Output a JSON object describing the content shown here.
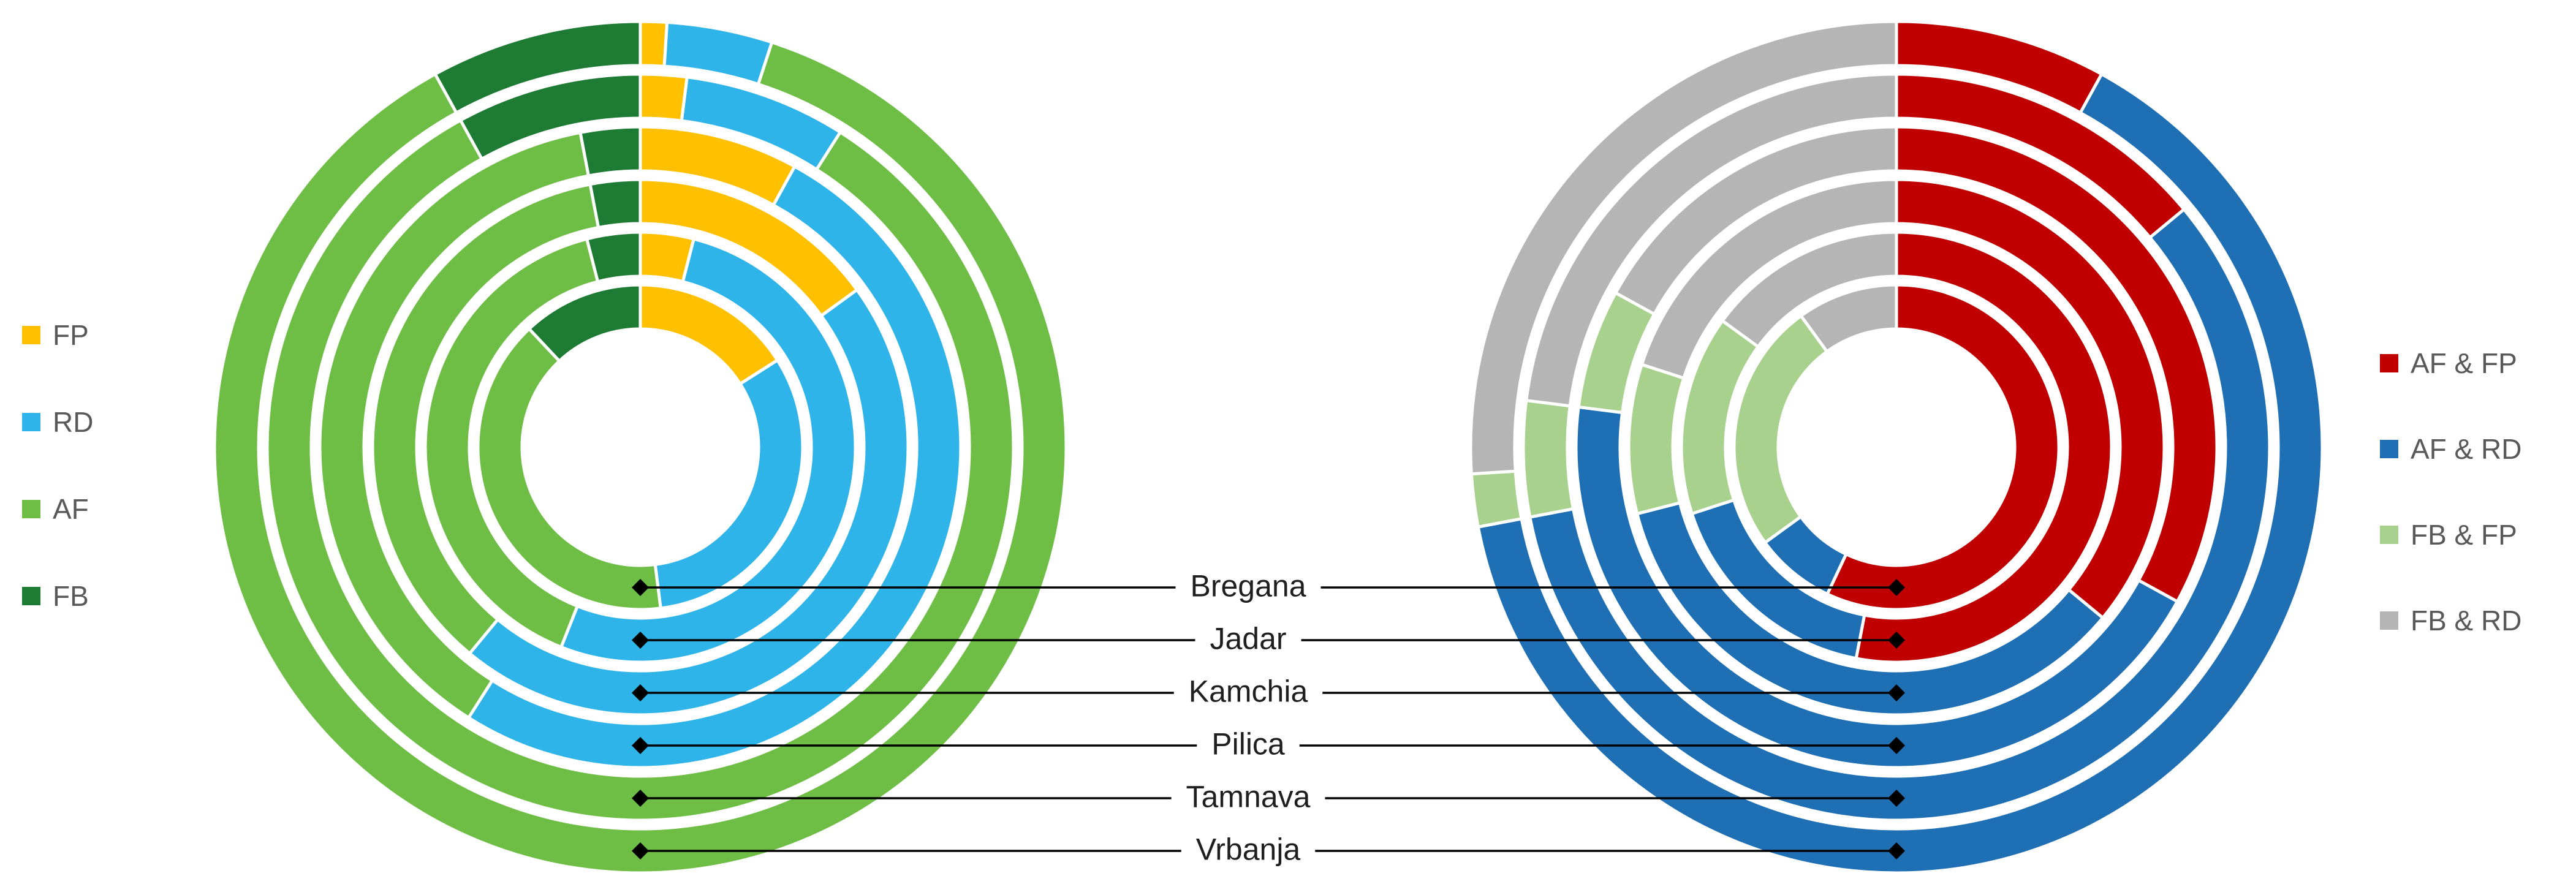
{
  "page": {
    "background": "#FFFFFF"
  },
  "legend_left": {
    "items": [
      {
        "label": "FP",
        "color": "#FFC000"
      },
      {
        "label": "RD",
        "color": "#2FB4E9"
      },
      {
        "label": "AF",
        "color": "#6EBE46"
      },
      {
        "label": "FB",
        "color": "#1E7B33"
      }
    ]
  },
  "legend_right": {
    "items": [
      {
        "label": "AF & FP",
        "color": "#C00000"
      },
      {
        "label": "AF & RD",
        "color": "#1F6FB5"
      },
      {
        "label": "FB & FP",
        "color": "#A9D18E"
      },
      {
        "label": "FB & RD",
        "color": "#B5B5B5"
      }
    ]
  },
  "row_labels": [
    "Bregana",
    "Jadar",
    "Kamchia",
    "Pilica",
    "Tamnava",
    "Vrbanja"
  ],
  "chart_data": [
    {
      "type": "pie",
      "variant": "multi-ring-donut",
      "title": "",
      "legend_position": "left",
      "start_angle_deg": 0,
      "direction": "clockwise",
      "rings_inner_to_outer": [
        "Bregana",
        "Jadar",
        "Kamchia",
        "Pilica",
        "Tamnava",
        "Vrbanja"
      ],
      "series": [
        "FP",
        "RD",
        "AF",
        "FB"
      ],
      "colors": {
        "FP": "#FFC000",
        "RD": "#2FB4E9",
        "AF": "#6EBE46",
        "FB": "#1E7B33"
      },
      "values_percent": {
        "Bregana": [
          16,
          32,
          40,
          12
        ],
        "Jadar": [
          4,
          52,
          40,
          4
        ],
        "Kamchia": [
          15,
          46,
          36,
          3
        ],
        "Pilica": [
          8,
          51,
          38,
          3
        ],
        "Tamnava": [
          2,
          7,
          83,
          8
        ],
        "Vrbanja": [
          1,
          4,
          87,
          8
        ]
      }
    },
    {
      "type": "pie",
      "variant": "multi-ring-donut",
      "title": "",
      "legend_position": "right",
      "start_angle_deg": 0,
      "direction": "clockwise",
      "rings_inner_to_outer": [
        "Bregana",
        "Jadar",
        "Kamchia",
        "Pilica",
        "Tamnava",
        "Vrbanja"
      ],
      "series": [
        "AF & FP",
        "AF & RD",
        "FB & FP",
        "FB & RD"
      ],
      "colors": {
        "AF & FP": "#C00000",
        "AF & RD": "#1F6FB5",
        "FB & FP": "#A9D18E",
        "FB & RD": "#B5B5B5"
      },
      "values_percent": {
        "Bregana": [
          57,
          8,
          25,
          10
        ],
        "Jadar": [
          53,
          17,
          15,
          15
        ],
        "Kamchia": [
          36,
          35,
          9,
          20
        ],
        "Pilica": [
          33,
          44,
          6,
          17
        ],
        "Tamnava": [
          14,
          58,
          5,
          23
        ],
        "Vrbanja": [
          8,
          64,
          2,
          26
        ]
      }
    }
  ]
}
